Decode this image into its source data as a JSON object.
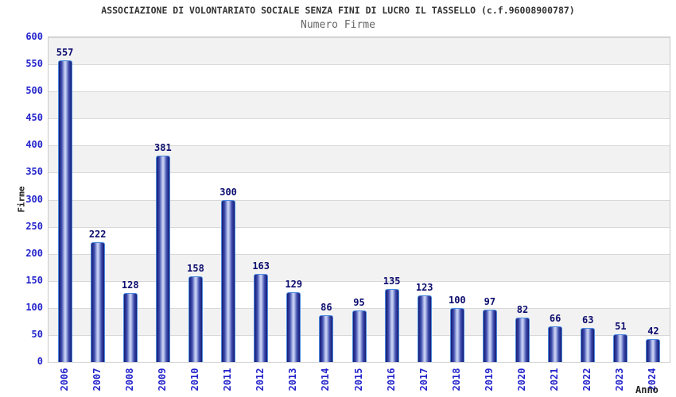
{
  "header": {
    "title": "ASSOCIAZIONE DI VOLONTARIATO SOCIALE SENZA FINI DI LUCRO IL TASSELLO (c.f.96008900787)",
    "subtitle": "Numero Firme"
  },
  "chart_data": {
    "type": "bar",
    "title": "Numero Firme",
    "xlabel": "Anno",
    "ylabel": "Firme",
    "categories": [
      "2006",
      "2007",
      "2008",
      "2009",
      "2010",
      "2011",
      "2012",
      "2013",
      "2014",
      "2015",
      "2016",
      "2017",
      "2018",
      "2019",
      "2020",
      "2021",
      "2022",
      "2023",
      "2024"
    ],
    "values": [
      557,
      222,
      128,
      381,
      158,
      300,
      163,
      129,
      86,
      95,
      135,
      123,
      100,
      97,
      82,
      66,
      63,
      51,
      42
    ],
    "ylim": [
      0,
      600
    ],
    "ytick_step": 50,
    "grid": true,
    "legend": "none",
    "band_shading": "alternating horizontal 50-unit bands, gray band at top (550-600)",
    "colors": {
      "bar_edge_dark": "#161b72",
      "bar_mid": "#3d4cae",
      "bar_center_light": "#c4cef2",
      "bar_outline": "#4a8be0",
      "tick_label": "#2424cc",
      "value_label": "#0c0c6e",
      "band_gray": "#f2f2f2",
      "gridline": "#d8d8d8",
      "plot_border": "#c9c9c9",
      "title_color": "#333333",
      "subtitle_color": "#666666",
      "axis_title_color": "#222222"
    }
  }
}
